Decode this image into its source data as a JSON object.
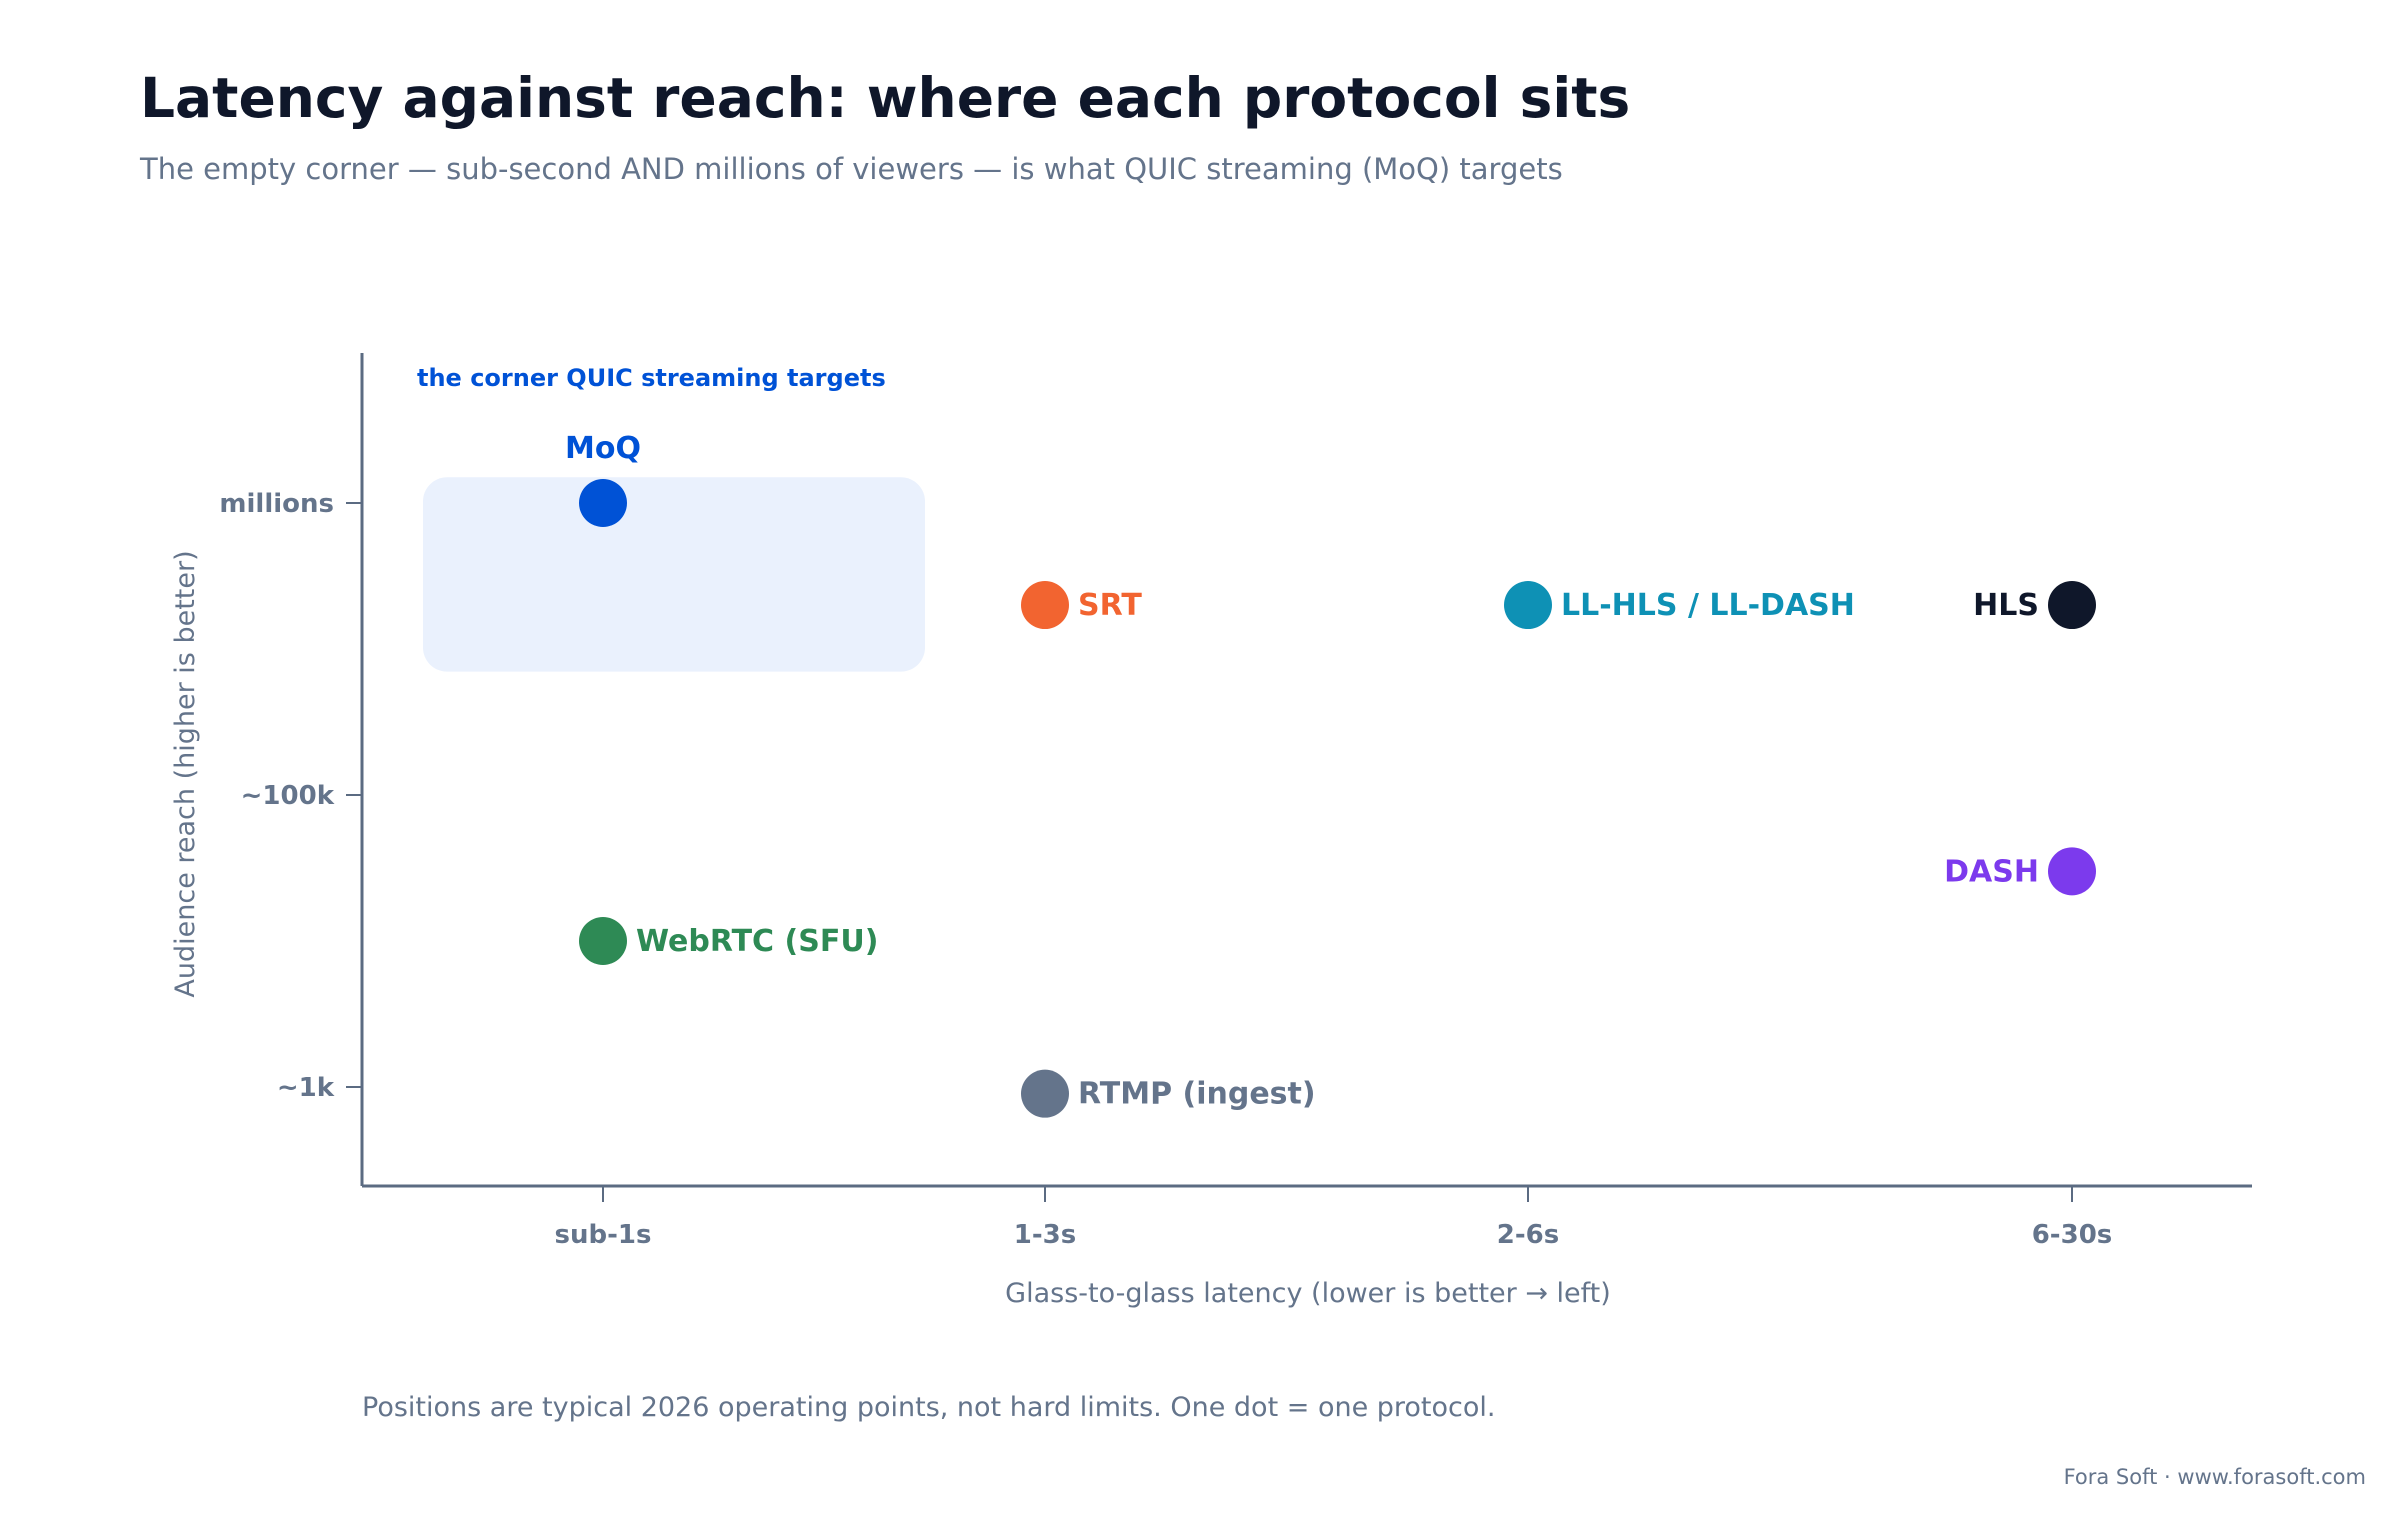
{
  "header": {
    "title": "Latency against reach: where each protocol sits",
    "subtitle": "The empty corner — sub-second AND millions of viewers — is what QUIC streaming (MoQ) targets"
  },
  "footer": {
    "note": "Positions are typical 2026 operating points, not hard limits. One dot = one protocol.",
    "credit": "Fora Soft · www.forasoft.com"
  },
  "chart_data": {
    "type": "scatter",
    "xlabel": "Glass-to-glass latency (lower is better → left)",
    "ylabel": "Audience reach (higher is better)",
    "x_categories": [
      "sub-1s",
      "1-3s",
      "2-6s",
      "6-30s"
    ],
    "y_ticks": [
      "~1k",
      "~100k",
      "millions"
    ],
    "y_scale": "log",
    "y_tick_values": [
      1000,
      100000,
      10000000
    ],
    "highlight_region": {
      "label": "the corner QUIC streaming targets",
      "x_range": [
        "sub-1s",
        "sub-1s"
      ],
      "y_range": [
        700000,
        15000000
      ],
      "color": "#eaf1fd",
      "label_color": "#0052d6"
    },
    "points": [
      {
        "name": "MoQ",
        "x": "sub-1s",
        "y": 10000000,
        "color": "#0052d6",
        "label_pos": "top"
      },
      {
        "name": "SRT",
        "x": "1-3s",
        "y": 2000000,
        "color": "#f26430",
        "label_pos": "right"
      },
      {
        "name": "LL-HLS / LL-DASH",
        "x": "2-6s",
        "y": 2000000,
        "color": "#0e91b5",
        "label_pos": "right"
      },
      {
        "name": "HLS",
        "x": "6-30s",
        "y": 2000000,
        "color": "#0f172a",
        "label_pos": "left"
      },
      {
        "name": "DASH",
        "x": "6-30s",
        "y": 30000,
        "color": "#7c3aed",
        "label_pos": "left"
      },
      {
        "name": "WebRTC (SFU)",
        "x": "sub-1s",
        "y": 10000,
        "color": "#2e8a55",
        "label_pos": "right"
      },
      {
        "name": "RTMP (ingest)",
        "x": "1-3s",
        "y": 900,
        "color": "#64748b",
        "label_pos": "right"
      }
    ],
    "grid": false,
    "axis_color": "#5b6b82",
    "tick_label_color": "#64748b"
  }
}
